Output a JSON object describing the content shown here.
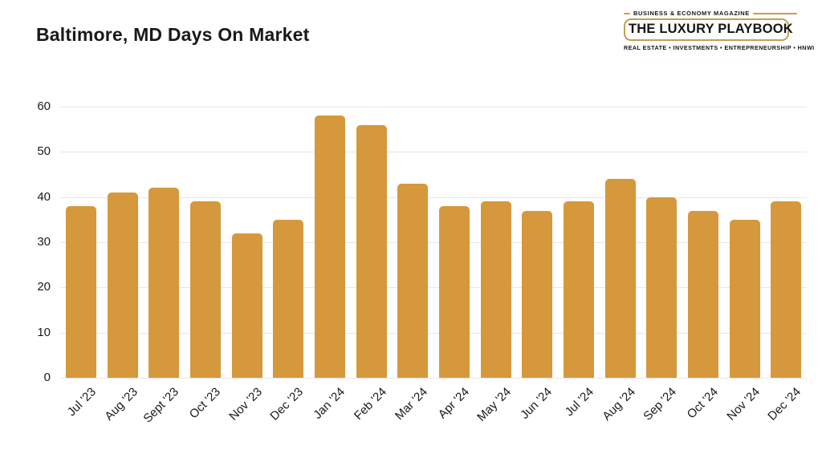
{
  "header": {
    "title": "Baltimore, MD Days On Market"
  },
  "logo": {
    "tagline_top": "BUSINESS & ECONOMY MAGAZINE",
    "name": "THE LUXURY PLAYBOOK",
    "tagline_bottom": "REAL ESTATE • INVESTMENTS • ENTREPRENEURSHIP • HNWI",
    "border_color": "#C69D52"
  },
  "colors": {
    "bar": "#D6983C",
    "gridline": "#E7E7E7",
    "text": "#1A1A1A",
    "background": "#FFFFFF"
  },
  "chart_data": {
    "type": "bar",
    "title": "Baltimore, MD Days On Market",
    "categories": [
      "Jul '23",
      "Aug '23",
      "Sept '23",
      "Oct '23",
      "Nov '23",
      "Dec '23",
      "Jan '24",
      "Feb '24",
      "Mar '24",
      "Apr '24",
      "May '24",
      "Jun '24",
      "Jul '24",
      "Aug '24",
      "Sep '24",
      "Oct '24",
      "Nov '24",
      "Dec '24"
    ],
    "values": [
      38,
      41,
      42,
      39,
      32,
      35,
      58,
      56,
      43,
      38,
      39,
      37,
      39,
      44,
      40,
      37,
      35,
      39
    ],
    "xlabel": "",
    "ylabel": "",
    "ylim": [
      0,
      60
    ],
    "yticks": [
      0,
      10,
      20,
      30,
      40,
      50,
      60
    ],
    "grid": "horizontal-only",
    "legend": "none",
    "bar_color": "#D6983C"
  }
}
